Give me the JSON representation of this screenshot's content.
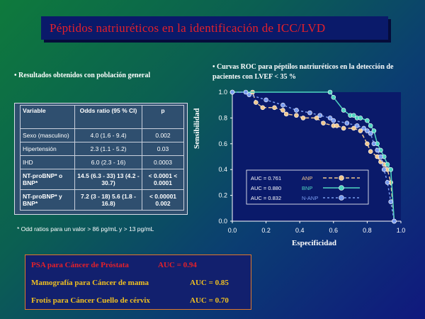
{
  "title": "Péptidos natriuréticos en la  identificación de ICC/LVD",
  "left_bullet": "• Resultados obtenidos con población general",
  "table": {
    "headers": [
      "Variable",
      "Odds ratio (95 % CI)",
      "p"
    ],
    "rows": [
      {
        "variable": "Sexo (masculino)",
        "or": "4.0 (1.6 - 9.4)",
        "p": "0.002"
      },
      {
        "variable": "Hipertensión",
        "or": "2.3 (1.1 - 5.2)",
        "p": "0.03"
      },
      {
        "variable": "IHD",
        "or": "6.0 (2.3 - 16)",
        "p": "0.0003"
      },
      {
        "variable": "NT-proBNP* o BNP*",
        "or": "14.5 (6.3 - 33) 13 (4.2 - 30.7)",
        "p": "< 0.0001 < 0.0001"
      },
      {
        "variable": "NT-proBNP* y BNP*",
        "or": "7.2 (3 - 18) 5.6 (1.8 - 16.8)",
        "p": "< 0.00001 0.002"
      }
    ]
  },
  "note": "* Odd ratios para un valor  > 86 pg/mL y > 13 pg/mL",
  "right_bullet": "• Curvas ROC para péptilos natriuréticos en la detección de pacientes con LVEF < 35 %",
  "chart_data": {
    "type": "line",
    "xlabel": "Especificidad",
    "ylabel": "Sensibilidad",
    "xlim": [
      0,
      1
    ],
    "ylim": [
      0,
      1
    ],
    "x_ticks": [
      "0.0",
      "0.2",
      "0.4",
      "0.6",
      "0.8",
      "1.0"
    ],
    "y_ticks": [
      "0.0",
      "0.2",
      "0.4",
      "0.6",
      "0.8",
      "1.0"
    ],
    "legend_position": "bottom-center",
    "series": [
      {
        "name": "ANP",
        "auc_label": "AUC = 0.761",
        "color": "#f0c890",
        "x": [
          0.0,
          0.12,
          0.14,
          0.18,
          0.25,
          0.3,
          0.32,
          0.38,
          0.42,
          0.5,
          0.54,
          0.6,
          0.62,
          0.66,
          0.72,
          0.76,
          0.8,
          0.82,
          0.86,
          0.88,
          0.9,
          0.92,
          0.94,
          0.96
        ],
        "y": [
          1.0,
          1.0,
          0.92,
          0.88,
          0.88,
          0.86,
          0.83,
          0.82,
          0.8,
          0.8,
          0.76,
          0.74,
          0.74,
          0.72,
          0.72,
          0.7,
          0.6,
          0.54,
          0.5,
          0.46,
          0.44,
          0.4,
          0.3,
          0.0
        ]
      },
      {
        "name": "BNP",
        "auc_label": "AUC = 0.880",
        "color": "#4fd6c0",
        "x": [
          0.0,
          0.58,
          0.6,
          0.66,
          0.7,
          0.72,
          0.74,
          0.76,
          0.8,
          0.82,
          0.84,
          0.86,
          0.88,
          0.9,
          0.92,
          0.94,
          0.96
        ],
        "y": [
          1.0,
          1.0,
          0.96,
          0.86,
          0.82,
          0.82,
          0.8,
          0.8,
          0.78,
          0.74,
          0.7,
          0.6,
          0.55,
          0.5,
          0.44,
          0.4,
          0.0
        ]
      },
      {
        "name": "N-ANP",
        "auc_label": "AUC = 0.832",
        "color": "#7a9cf0",
        "x": [
          0.0,
          0.08,
          0.1,
          0.2,
          0.3,
          0.38,
          0.46,
          0.52,
          0.58,
          0.6,
          0.68,
          0.74,
          0.78,
          0.8,
          0.82,
          0.84,
          0.86,
          0.88,
          0.9,
          0.92,
          0.94,
          0.96
        ],
        "y": [
          1.0,
          1.0,
          0.98,
          0.94,
          0.9,
          0.86,
          0.84,
          0.82,
          0.8,
          0.78,
          0.76,
          0.74,
          0.72,
          0.7,
          0.68,
          0.6,
          0.55,
          0.5,
          0.4,
          0.3,
          0.15,
          0.0
        ]
      }
    ]
  },
  "auc_list": [
    {
      "label": "PSA para Cáncer de  Próstata",
      "value": "AUC = 0.94"
    },
    {
      "label": "Mamografía para Cáncer de mama",
      "value": "AUC = 0.85"
    },
    {
      "label": "Frotis  para  Cáncer Cuello de cérvix",
      "value": "AUC = 0.70"
    }
  ],
  "colors": {
    "title_red": "#e5202a",
    "title_box": "#0a1a6a",
    "auc_gold": "#f0c020",
    "auc_border": "#e1782a",
    "chart_bg": "#0a1a6a"
  }
}
